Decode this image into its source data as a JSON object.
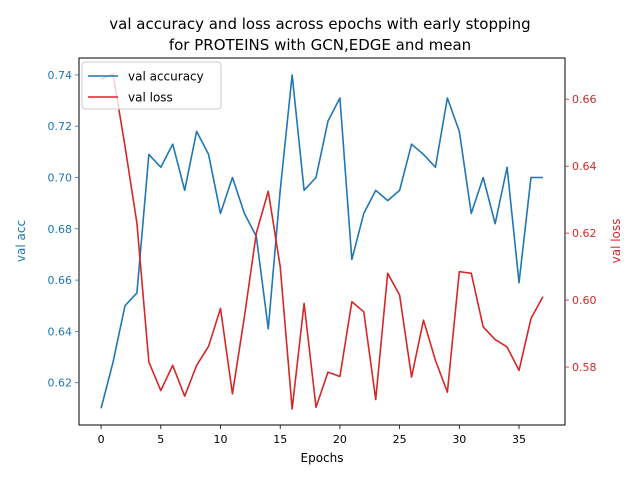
{
  "chart_data": {
    "type": "line",
    "title_line1": "val accuracy and loss across epochs with early stopping",
    "title_line2": "for PROTEINS with GCN,EDGE and mean",
    "xlabel": "Epochs",
    "ylabel_left": "val acc",
    "ylabel_right": "val loss",
    "xlim": [
      -1.85,
      38.85
    ],
    "ylim_left": [
      0.6035,
      0.7466
    ],
    "ylim_right": [
      0.5627,
      0.6723
    ],
    "xticks": [
      0,
      5,
      10,
      15,
      20,
      25,
      30,
      35
    ],
    "yticks_left": [
      0.62,
      0.64,
      0.66,
      0.68,
      0.7,
      0.72,
      0.74
    ],
    "yticks_right": [
      0.58,
      0.6,
      0.62,
      0.64,
      0.66
    ],
    "ytick_labels_left": [
      "0.62",
      "0.64",
      "0.66",
      "0.68",
      "0.70",
      "0.72",
      "0.74"
    ],
    "ytick_labels_right": [
      "0.58",
      "0.60",
      "0.62",
      "0.64",
      "0.66"
    ],
    "grid": false,
    "legend_position": "top-left",
    "x": [
      0,
      1,
      2,
      3,
      4,
      5,
      6,
      7,
      8,
      9,
      10,
      11,
      12,
      13,
      14,
      15,
      16,
      17,
      18,
      19,
      20,
      21,
      22,
      23,
      24,
      25,
      26,
      27,
      28,
      29,
      30,
      31,
      32,
      33,
      34,
      35,
      36,
      37
    ],
    "series": [
      {
        "name": "val accuracy",
        "axis": "left",
        "color": "#1f77b4",
        "values": [
          0.61,
          0.628,
          0.65,
          0.655,
          0.709,
          0.704,
          0.713,
          0.695,
          0.718,
          0.709,
          0.686,
          0.7,
          0.686,
          0.677,
          0.641,
          0.695,
          0.74,
          0.695,
          0.7,
          0.722,
          0.731,
          0.668,
          0.686,
          0.695,
          0.691,
          0.695,
          0.713,
          0.709,
          0.704,
          0.731,
          0.718,
          0.686,
          0.7,
          0.682,
          0.704,
          0.659,
          0.7,
          0.7
        ]
      },
      {
        "name": "val loss",
        "axis": "right",
        "color": "#d62728",
        "values": [
          0.666,
          0.6675,
          0.646,
          0.623,
          0.5815,
          0.573,
          0.5805,
          0.5713,
          0.5805,
          0.5862,
          0.5975,
          0.572,
          0.595,
          0.62,
          0.6325,
          0.61,
          0.5675,
          0.599,
          0.568,
          0.5785,
          0.5772,
          0.5995,
          0.5965,
          0.5703,
          0.608,
          0.6015,
          0.577,
          0.594,
          0.582,
          0.5725,
          0.6085,
          0.608,
          0.592,
          0.5882,
          0.586,
          0.579,
          0.5945,
          0.601
        ]
      }
    ]
  }
}
